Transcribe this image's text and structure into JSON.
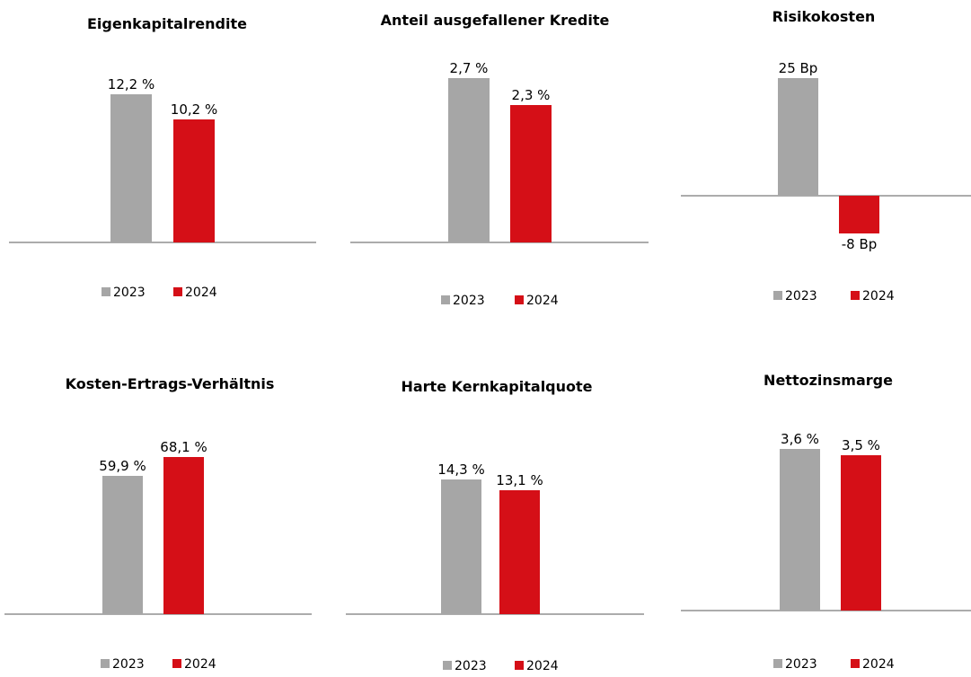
{
  "colors": {
    "y2023": "#a6a6a6",
    "y2024": "#d50f17",
    "axis": "#595959"
  },
  "chart_data": [
    {
      "type": "bar",
      "title": "Eigenkapitalrendite",
      "categories": [
        "2023",
        "2024"
      ],
      "values": [
        12.2,
        10.2
      ],
      "value_labels": [
        "12,2 %",
        "10,2 %"
      ],
      "legend": [
        "2023",
        "2024"
      ],
      "legend_position": "bottom"
    },
    {
      "type": "bar",
      "title": "Anteil ausgefallener Kredite",
      "categories": [
        "2023",
        "2024"
      ],
      "values": [
        2.7,
        2.3
      ],
      "value_labels": [
        "2,7 %",
        "2,3 %"
      ],
      "legend": [
        "2023",
        "2024"
      ],
      "legend_position": "bottom"
    },
    {
      "type": "bar",
      "title": "Risikokosten",
      "categories": [
        "2023",
        "2024"
      ],
      "values": [
        25,
        -8
      ],
      "value_labels": [
        "25 Bp",
        "-8 Bp"
      ],
      "legend": [
        "2023",
        "2024"
      ],
      "legend_position": "bottom"
    },
    {
      "type": "bar",
      "title": "Kosten-Ertrags-Verhältnis",
      "categories": [
        "2023",
        "2024"
      ],
      "values": [
        59.9,
        68.1
      ],
      "value_labels": [
        "59,9 %",
        "68,1 %"
      ],
      "legend": [
        "2023",
        "2024"
      ],
      "legend_position": "bottom"
    },
    {
      "type": "bar",
      "title": "Harte Kernkapitalquote",
      "categories": [
        "2023",
        "2024"
      ],
      "values": [
        14.3,
        13.1
      ],
      "value_labels": [
        "14,3 %",
        "13,1 %"
      ],
      "legend": [
        "2023",
        "2024"
      ],
      "legend_position": "bottom"
    },
    {
      "type": "bar",
      "title": "Nettozinsmarge",
      "categories": [
        "2023",
        "2024"
      ],
      "values": [
        3.6,
        3.5
      ],
      "value_labels": [
        "3,6 %",
        "3,5 %"
      ],
      "legend": [
        "2023",
        "2024"
      ],
      "legend_position": "bottom"
    }
  ]
}
